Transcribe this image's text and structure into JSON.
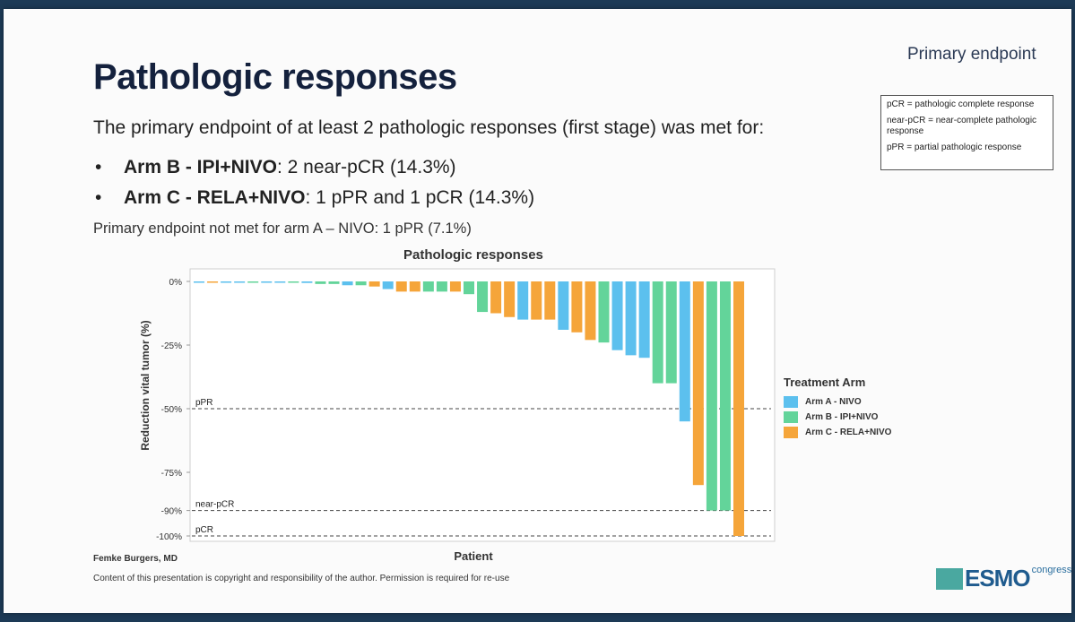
{
  "header": {
    "title": "Pathologic responses",
    "endpoint_label": "Primary endpoint"
  },
  "definitions": [
    "pCR = pathologic complete response",
    "near-pCR = near-complete pathologic response",
    "pPR = partial pathologic response"
  ],
  "body": {
    "intro": "The primary endpoint of at least 2 pathologic responses (first stage) was met for:",
    "bullets": [
      {
        "bold": "Arm B - IPI+NIVO",
        "rest": ": 2 near-pCR (14.3%)"
      },
      {
        "bold": "Arm C - RELA+NIVO",
        "rest": ": 1 pPR and 1 pCR (14.3%)"
      }
    ],
    "note": "Primary endpoint not met for arm A – NIVO: 1 pPR (7.1%)"
  },
  "footer": {
    "author": "Femke Burgers, MD",
    "copyright": "Content of this presentation is copyright and responsibility of the author. Permission is required for re-use",
    "logo_esmo": "ESMO",
    "logo_congress": "congress"
  },
  "colors": {
    "arm_a": "#5cc0ee",
    "arm_b": "#63d49a",
    "arm_c": "#f5a53a",
    "title": "#14213d"
  },
  "chart_data": {
    "type": "bar",
    "title": "Pathologic responses",
    "xlabel": "Patient",
    "ylabel": "Reduction vital tumor (%)",
    "ylim": [
      0,
      100
    ],
    "y_ticks": [
      {
        "value": 0,
        "label": "0%"
      },
      {
        "value": 25,
        "label": "-25%"
      },
      {
        "value": 50,
        "label": "-50%"
      },
      {
        "value": 75,
        "label": "-75%"
      },
      {
        "value": 90,
        "label": "-90%"
      },
      {
        "value": 100,
        "label": "-100%"
      }
    ],
    "thresholds": [
      {
        "value": 50,
        "label": "pPR"
      },
      {
        "value": 90,
        "label": "near-pCR"
      },
      {
        "value": 100,
        "label": "pCR"
      }
    ],
    "legend_title": "Treatment Arm",
    "legend": [
      {
        "key": "A",
        "label": "Arm A - NIVO"
      },
      {
        "key": "B",
        "label": "Arm B - IPI+NIVO"
      },
      {
        "key": "C",
        "label": "Arm C - RELA+NIVO"
      }
    ],
    "bars": [
      {
        "arm": "A",
        "value": 0
      },
      {
        "arm": "C",
        "value": 0
      },
      {
        "arm": "A",
        "value": 0
      },
      {
        "arm": "A",
        "value": 0
      },
      {
        "arm": "B",
        "value": 0
      },
      {
        "arm": "A",
        "value": 0
      },
      {
        "arm": "A",
        "value": 0.3
      },
      {
        "arm": "B",
        "value": 0.4
      },
      {
        "arm": "A",
        "value": 0.6
      },
      {
        "arm": "B",
        "value": 1
      },
      {
        "arm": "B",
        "value": 1
      },
      {
        "arm": "A",
        "value": 1.5
      },
      {
        "arm": "B",
        "value": 1.5
      },
      {
        "arm": "C",
        "value": 2
      },
      {
        "arm": "A",
        "value": 3
      },
      {
        "arm": "C",
        "value": 4
      },
      {
        "arm": "C",
        "value": 4
      },
      {
        "arm": "B",
        "value": 4
      },
      {
        "arm": "B",
        "value": 4
      },
      {
        "arm": "C",
        "value": 4
      },
      {
        "arm": "B",
        "value": 5
      },
      {
        "arm": "B",
        "value": 12
      },
      {
        "arm": "C",
        "value": 12.5
      },
      {
        "arm": "C",
        "value": 14
      },
      {
        "arm": "A",
        "value": 15
      },
      {
        "arm": "C",
        "value": 15
      },
      {
        "arm": "C",
        "value": 15
      },
      {
        "arm": "A",
        "value": 19
      },
      {
        "arm": "C",
        "value": 20
      },
      {
        "arm": "C",
        "value": 23
      },
      {
        "arm": "B",
        "value": 24
      },
      {
        "arm": "A",
        "value": 27
      },
      {
        "arm": "A",
        "value": 29
      },
      {
        "arm": "A",
        "value": 30
      },
      {
        "arm": "B",
        "value": 40
      },
      {
        "arm": "B",
        "value": 40
      },
      {
        "arm": "A",
        "value": 55
      },
      {
        "arm": "C",
        "value": 80
      },
      {
        "arm": "B",
        "value": 90
      },
      {
        "arm": "B",
        "value": 90
      },
      {
        "arm": "C",
        "value": 100
      }
    ]
  }
}
